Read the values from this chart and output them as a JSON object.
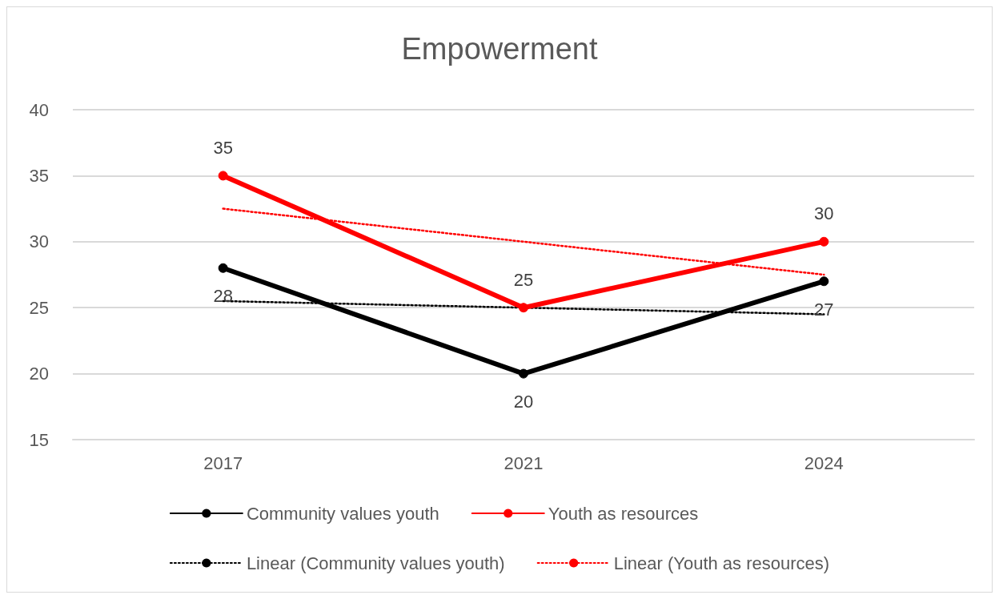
{
  "chart_data": {
    "type": "line",
    "title": "Empowerment",
    "categories": [
      "2017",
      "2021",
      "2024"
    ],
    "series": [
      {
        "name": "Community values youth",
        "color": "#000000",
        "values": [
          28,
          20,
          27
        ],
        "value_labels": [
          "28",
          "20",
          "27"
        ],
        "marker": "circle",
        "line_style": "solid"
      },
      {
        "name": "Youth as resources",
        "color": "#ff0000",
        "values": [
          35,
          25,
          30
        ],
        "value_labels": [
          "35",
          "25",
          "30"
        ],
        "marker": "circle",
        "line_style": "solid"
      },
      {
        "name": "Linear (Community values youth)",
        "color": "#000000",
        "values": [
          25.5,
          25,
          24.5
        ],
        "marker": "none",
        "line_style": "dotted"
      },
      {
        "name": "Linear (Youth as resources)",
        "color": "#ff0000",
        "values": [
          32.5,
          30,
          27.5
        ],
        "marker": "none",
        "line_style": "dotted"
      }
    ],
    "ylim": [
      15,
      40
    ],
    "yticks": [
      15,
      20,
      25,
      30,
      35,
      40
    ],
    "grid": "y",
    "legend": "bottom"
  }
}
